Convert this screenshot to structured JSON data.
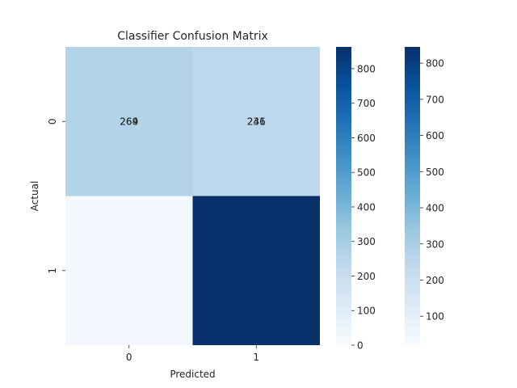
{
  "chart_data": {
    "type": "heatmap",
    "title": "Classifier Confusion Matrix",
    "xlabel": "Predicted",
    "ylabel": "Actual",
    "x_categories": [
      "0",
      "1"
    ],
    "y_categories": [
      "0",
      "1"
    ],
    "matrix": [
      [
        269,
        241
      ],
      [
        20,
        863
      ]
    ],
    "cell_text": [
      [
        "269",
        "241"
      ],
      [
        "",
        ""
      ]
    ],
    "overlay_text": [
      [
        "264",
        "236"
      ],
      [
        "",
        ""
      ]
    ],
    "colormap": "Blues",
    "colormap_stops": [
      "#f7fbff",
      "#deebf7",
      "#c6dbef",
      "#9ecae1",
      "#6baed6",
      "#4292c6",
      "#2171b5",
      "#08519c",
      "#08306b"
    ],
    "colorbars": [
      {
        "vmin": 0,
        "vmax": 863,
        "ticks": [
          "0",
          "100",
          "200",
          "300",
          "400",
          "500",
          "600",
          "700",
          "800"
        ]
      },
      {
        "vmin": 20,
        "vmax": 845,
        "ticks": [
          "100",
          "200",
          "300",
          "400",
          "500",
          "600",
          "700",
          "800"
        ]
      }
    ]
  }
}
